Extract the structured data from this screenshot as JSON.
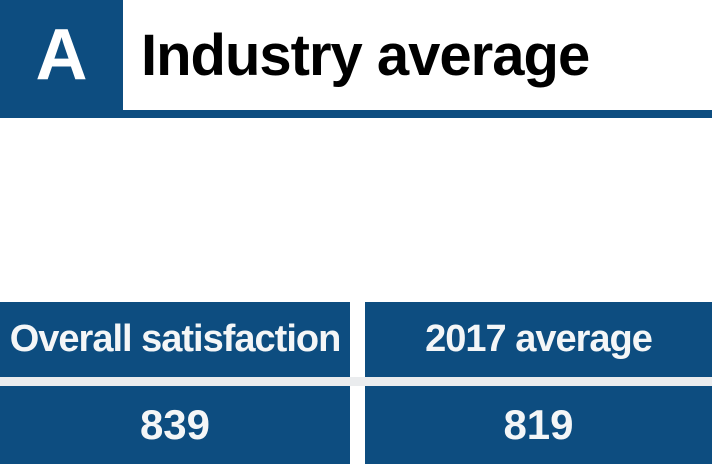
{
  "header": {
    "section_letter": "A",
    "title": "Industry average"
  },
  "stats": {
    "columns": [
      {
        "label": "Overall satisfaction",
        "value": "839"
      },
      {
        "label": "2017 average",
        "value": "819"
      }
    ]
  },
  "colors": {
    "primary_blue": "#0d4d80",
    "divider_gray": "#eaecee",
    "title_text": "#000000",
    "cell_text": "#f4f6f7",
    "background": "#ffffff"
  },
  "chart_data": {
    "type": "table",
    "title": "Industry average",
    "columns": [
      "Overall satisfaction",
      "2017 average"
    ],
    "values": [
      839,
      819
    ]
  }
}
